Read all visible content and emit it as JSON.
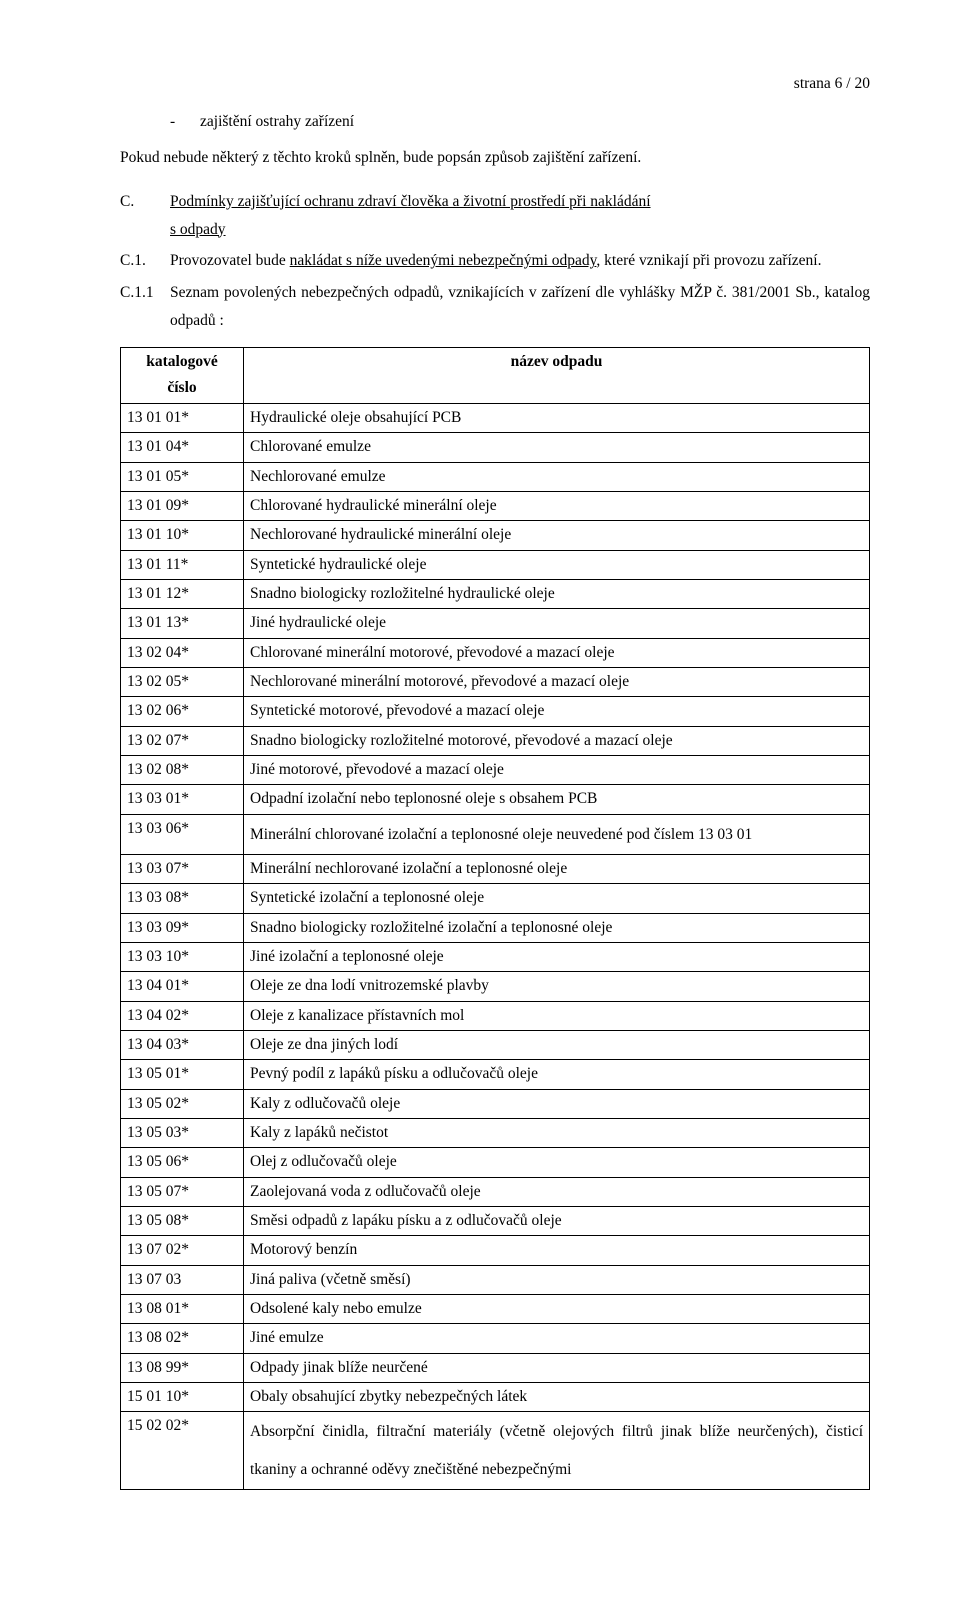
{
  "pageNumber": "strana 6 / 20",
  "bulletDash": "-",
  "bulletText": "zajištění ostrahy zařízení",
  "intro": "Pokud nebude některý z těchto kroků splněn, bude popsán způsob zajištění zařízení.",
  "C": {
    "label": "C.",
    "line1a": "Podmínky zajišťující ochranu zdraví člověka  a životní prostředí při nakládání",
    "line1b": "s odpady"
  },
  "C1": {
    "label": "C.1.",
    "pre": "Provozovatel bude ",
    "under": "nakládat s níže uvedenými nebezpečnými odpady",
    "post": ", které vznikají při provozu zařízení."
  },
  "C11": {
    "label": "C.1.1",
    "text": "Seznam povolených nebezpečných odpadů, vznikajících v zařízení dle  vyhlášky MŽP č. 381/2001 Sb., katalog odpadů :"
  },
  "tableHeaders": {
    "col1a": "katalogové",
    "col1b": "číslo",
    "col2": "název odpadu"
  },
  "rows": [
    {
      "c": "13 01 01*",
      "n": "Hydraulické oleje obsahující PCB"
    },
    {
      "c": "13 01 04*",
      "n": "Chlorované emulze"
    },
    {
      "c": "13 01 05*",
      "n": "Nechlorované emulze"
    },
    {
      "c": "13 01 09*",
      "n": "Chlorované hydraulické minerální oleje"
    },
    {
      "c": "13 01 10*",
      "n": "Nechlorované hydraulické minerální oleje"
    },
    {
      "c": "13 01 11*",
      "n": "Syntetické hydraulické oleje"
    },
    {
      "c": "13 01 12*",
      "n": "Snadno biologicky rozložitelné hydraulické oleje"
    },
    {
      "c": "13 01 13*",
      "n": "Jiné hydraulické oleje"
    },
    {
      "c": "13 02 04*",
      "n": "Chlorované minerální motorové, převodové a mazací oleje"
    },
    {
      "c": "13 02 05*",
      "n": "Nechlorované minerální motorové, převodové a mazací oleje"
    },
    {
      "c": "13 02 06*",
      "n": "Syntetické motorové, převodové a mazací oleje"
    },
    {
      "c": "13 02 07*",
      "n": "Snadno biologicky rozložitelné motorové, převodové a mazací oleje"
    },
    {
      "c": "13 02 08*",
      "n": "Jiné motorové, převodové a mazací oleje"
    },
    {
      "c": "13 03 01*",
      "n": "Odpadní izolační nebo teplonosné oleje s obsahem PCB"
    },
    {
      "c": "13 03 06*",
      "n": "Minerální chlorované izolační a teplonosné oleje neuvedené pod číslem 13 03 01",
      "tall": true
    },
    {
      "c": "13 03 07*",
      "n": "Minerální nechlorované izolační a teplonosné oleje"
    },
    {
      "c": "13 03 08*",
      "n": "Syntetické izolační a teplonosné oleje"
    },
    {
      "c": "13 03 09*",
      "n": "Snadno biologicky rozložitelné izolační a teplonosné oleje"
    },
    {
      "c": "13 03 10*",
      "n": "Jiné izolační a teplonosné oleje"
    },
    {
      "c": "13 04 01*",
      "n": "Oleje ze dna lodí vnitrozemské plavby"
    },
    {
      "c": "13 04 02*",
      "n": "Oleje z kanalizace přístavních mol"
    },
    {
      "c": "13 04 03*",
      "n": "Oleje ze dna jiných lodí"
    },
    {
      "c": "13 05 01*",
      "n": "Pevný podíl z lapáků písku a odlučovačů oleje"
    },
    {
      "c": "13 05 02*",
      "n": "Kaly z odlučovačů oleje"
    },
    {
      "c": "13 05 03*",
      "n": "Kaly z lapáků nečistot"
    },
    {
      "c": "13 05 06*",
      "n": "Olej z odlučovačů oleje"
    },
    {
      "c": "13 05 07*",
      "n": "Zaolejovaná voda z odlučovačů oleje"
    },
    {
      "c": "13 05 08*",
      "n": "Směsi odpadů z lapáku písku a z odlučovačů oleje"
    },
    {
      "c": "13 07 02*",
      "n": "Motorový benzín"
    },
    {
      "c": "13 07 03",
      "n": "Jiná paliva (včetně směsí)"
    },
    {
      "c": "13 08 01*",
      "n": "Odsolené kaly nebo emulze"
    },
    {
      "c": "13 08 02*",
      "n": "Jiné emulze"
    },
    {
      "c": "13 08 99*",
      "n": "Odpady jinak blíže neurčené"
    },
    {
      "c": "15 01 10*",
      "n": "Obaly obsahující zbytky nebezpečných látek"
    },
    {
      "c": "15 02 02*",
      "n": "Absorpční činidla, filtrační materiály (včetně olejových filtrů jinak blíže neurčených), čisticí tkaniny a ochranné oděvy znečištěné nebezpečnými",
      "tall": true
    }
  ]
}
